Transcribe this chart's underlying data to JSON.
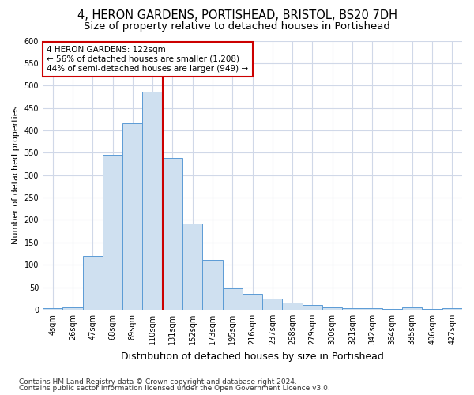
{
  "title_line1": "4, HERON GARDENS, PORTISHEAD, BRISTOL, BS20 7DH",
  "title_line2": "Size of property relative to detached houses in Portishead",
  "xlabel": "Distribution of detached houses by size in Portishead",
  "ylabel": "Number of detached properties",
  "footnote1": "Contains HM Land Registry data © Crown copyright and database right 2024.",
  "footnote2": "Contains public sector information licensed under the Open Government Licence v3.0.",
  "bar_labels": [
    "4sqm",
    "26sqm",
    "47sqm",
    "68sqm",
    "89sqm",
    "110sqm",
    "131sqm",
    "152sqm",
    "173sqm",
    "195sqm",
    "216sqm",
    "237sqm",
    "258sqm",
    "279sqm",
    "300sqm",
    "321sqm",
    "342sqm",
    "364sqm",
    "385sqm",
    "406sqm",
    "427sqm"
  ],
  "bar_values": [
    4,
    6,
    120,
    345,
    415,
    487,
    338,
    192,
    111,
    48,
    35,
    25,
    15,
    10,
    6,
    4,
    3,
    2,
    5,
    2,
    4
  ],
  "bar_color": "#cfe0f0",
  "bar_edge_color": "#5b9bd5",
  "vline_color": "#cc0000",
  "vline_x_idx": 6,
  "annotation_text": "4 HERON GARDENS: 122sqm\n← 56% of detached houses are smaller (1,208)\n44% of semi-detached houses are larger (949) →",
  "annotation_box_facecolor": "white",
  "annotation_box_edgecolor": "#cc0000",
  "ylim": [
    0,
    600
  ],
  "yticks": [
    0,
    50,
    100,
    150,
    200,
    250,
    300,
    350,
    400,
    450,
    500,
    550,
    600
  ],
  "fig_bg_color": "#ffffff",
  "plot_bg_color": "#ffffff",
  "grid_color": "#d0d8e8",
  "title1_fontsize": 10.5,
  "title2_fontsize": 9.5,
  "xlabel_fontsize": 9,
  "ylabel_fontsize": 8,
  "tick_fontsize": 7,
  "annot_fontsize": 7.5,
  "footnote_fontsize": 6.5
}
